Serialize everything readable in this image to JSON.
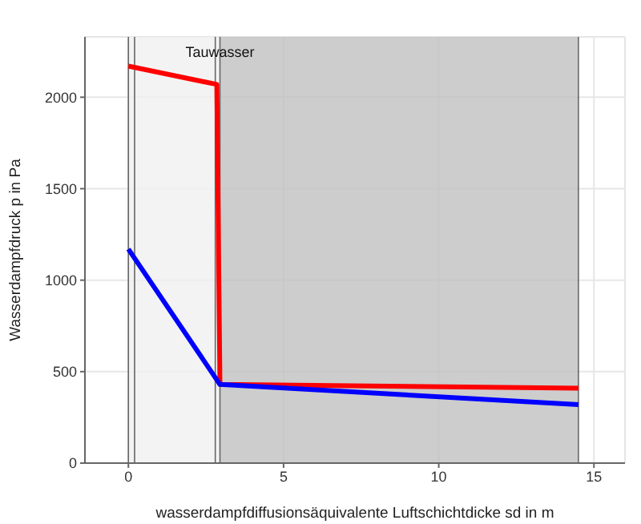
{
  "chart_data": {
    "type": "line",
    "xlabel": "wasserdampfdiffusionsäquivalente Luftschichtdicke sd in m",
    "ylabel": "Wasserdampfdruck p in Pa",
    "series": [
      {
        "color": "#ff0000",
        "x": [
          0,
          2.85,
          2.95,
          14.5
        ],
        "values": [
          2170,
          2070,
          430,
          410
        ]
      },
      {
        "color": "#0000ff",
        "x": [
          0,
          2.95,
          14.5
        ],
        "values": [
          1170,
          430,
          320
        ]
      }
    ],
    "xlim": [
      -1.4,
      16
    ],
    "xticks": [
      0,
      5,
      10,
      15
    ],
    "ylim": [
      0,
      2330
    ],
    "yticks": [
      0,
      500,
      1000,
      1500,
      2000
    ],
    "grid": true,
    "bands": [
      {
        "axis": "x",
        "from": 0,
        "to": 2.95,
        "color": "#f0f0f0"
      },
      {
        "axis": "x",
        "from": 2.95,
        "to": 14.5,
        "color": "#c0c0c0"
      }
    ],
    "ref_lines": [
      {
        "axis": "x",
        "value": 0,
        "color": "#666666"
      },
      {
        "axis": "x",
        "value": 0.2,
        "color": "#666666"
      },
      {
        "axis": "x",
        "value": 2.8,
        "color": "#666666"
      },
      {
        "axis": "x",
        "value": 2.95,
        "color": "#666666"
      },
      {
        "axis": "x",
        "value": 14.5,
        "color": "#666666"
      }
    ],
    "annotations": [
      {
        "text": "Tauwasser",
        "x": 2.95,
        "y": 2250
      }
    ]
  }
}
